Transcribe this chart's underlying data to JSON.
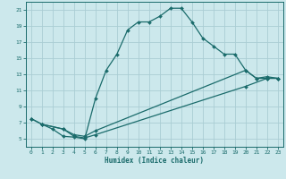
{
  "xlabel": "Humidex (Indice chaleur)",
  "bg_color": "#cce8ec",
  "grid_color": "#aacdd4",
  "line_color": "#1a6b6b",
  "xlim": [
    -0.5,
    23.5
  ],
  "ylim": [
    4.0,
    22.0
  ],
  "xticks": [
    0,
    1,
    2,
    3,
    4,
    5,
    6,
    7,
    8,
    9,
    10,
    11,
    12,
    13,
    14,
    15,
    16,
    17,
    18,
    19,
    20,
    21,
    22,
    23
  ],
  "yticks": [
    5,
    7,
    9,
    11,
    13,
    15,
    17,
    19,
    21
  ],
  "line1_x": [
    0,
    1,
    2,
    3,
    4,
    5,
    6,
    7,
    8,
    9,
    10,
    11,
    12,
    13,
    14,
    15,
    16,
    17,
    18,
    19,
    20,
    21,
    22,
    23
  ],
  "line1_y": [
    7.5,
    6.8,
    6.2,
    5.3,
    5.2,
    5.0,
    10.0,
    13.5,
    15.5,
    18.5,
    19.5,
    19.5,
    20.2,
    21.2,
    21.2,
    19.5,
    17.5,
    16.5,
    15.5,
    15.5,
    13.5,
    12.5,
    12.5,
    12.5
  ],
  "line2_x": [
    0,
    1,
    3,
    4,
    5,
    6,
    20,
    21,
    22,
    23
  ],
  "line2_y": [
    7.5,
    6.8,
    6.2,
    5.5,
    5.3,
    6.0,
    13.5,
    12.5,
    12.7,
    12.5
  ],
  "line3_x": [
    1,
    3,
    4,
    5,
    6,
    20,
    22,
    23
  ],
  "line3_y": [
    6.8,
    6.2,
    5.3,
    5.1,
    5.5,
    11.5,
    12.5,
    12.5
  ]
}
